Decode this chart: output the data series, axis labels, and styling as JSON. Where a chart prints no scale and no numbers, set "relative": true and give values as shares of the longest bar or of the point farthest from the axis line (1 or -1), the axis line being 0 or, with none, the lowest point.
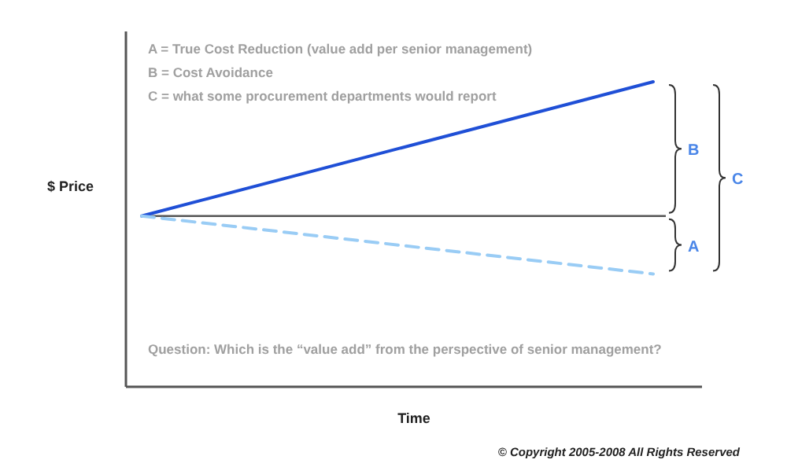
{
  "chart_data": {
    "type": "line",
    "relative": true,
    "xlabel": "Time",
    "ylabel": "$ Price",
    "categories": [
      null,
      null
    ],
    "series": [
      {
        "color": "#1f4fd6",
        "values": [
          0.56,
          1
        ],
        "line_style": "solid"
      },
      {
        "color": "#99ccf5",
        "values": [
          0.56,
          0.37
        ],
        "line_style": "dashed"
      }
    ],
    "ref_lines": [
      {
        "axis": "y",
        "value": 0.56,
        "color": "#555555"
      }
    ],
    "annotations": [
      "A = True Cost Reduction (value add per senior management)",
      "B = Cost Avoidance",
      "C = what some procurement departments would report",
      "Question: Which is the “value add” from the perspective of senior management?",
      "© Copyright 2005-2008 All Rights Reserved",
      "A",
      "B",
      "C"
    ]
  }
}
